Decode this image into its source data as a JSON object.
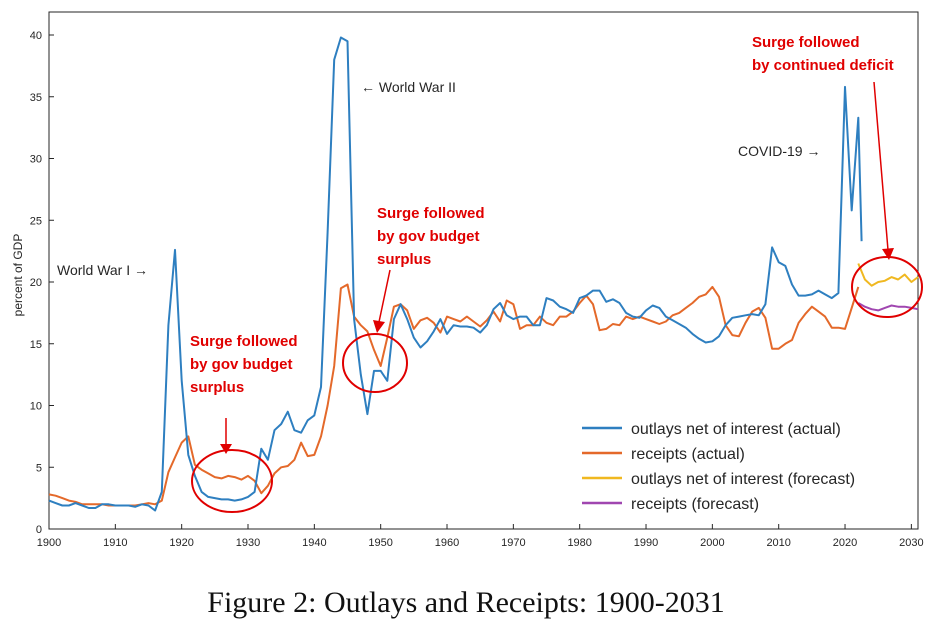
{
  "colors": {
    "outlays_actual": "#2e7fc0",
    "receipts_actual": "#e4692a",
    "outlays_forecast": "#f0b820",
    "receipts_forecast": "#a046b0",
    "annotation": "#e00000"
  },
  "caption": "Figure 2: Outlays and Receipts: 1900-2031",
  "chart_data": {
    "type": "line",
    "ylabel": "percent of GDP",
    "xlim": [
      1900,
      2031
    ],
    "ylim": [
      0,
      41
    ],
    "grid": false,
    "legend_position": "bottom-right",
    "x_ticks": [
      "1900",
      "1910",
      "1920",
      "1930",
      "1940",
      "1950",
      "1960",
      "1970",
      "1980",
      "1990",
      "2000",
      "2010",
      "2020",
      "2030"
    ],
    "y_ticks": [
      "0",
      "5",
      "10",
      "15",
      "20",
      "25",
      "30",
      "35",
      "40"
    ],
    "series": [
      {
        "name": "outlays net of interest (actual)",
        "points": [
          [
            1900,
            2.3
          ],
          [
            1901,
            2.1
          ],
          [
            1902,
            1.9
          ],
          [
            1903,
            1.9
          ],
          [
            1904,
            2.1
          ],
          [
            1905,
            1.9
          ],
          [
            1906,
            1.7
          ],
          [
            1907,
            1.7
          ],
          [
            1908,
            2.0
          ],
          [
            1909,
            2.0
          ],
          [
            1910,
            1.9
          ],
          [
            1911,
            1.9
          ],
          [
            1912,
            1.9
          ],
          [
            1913,
            1.8
          ],
          [
            1914,
            2.0
          ],
          [
            1915,
            1.9
          ],
          [
            1916,
            1.5
          ],
          [
            1917,
            3.0
          ],
          [
            1918,
            16.5
          ],
          [
            1919,
            22.6
          ],
          [
            1920,
            12.0
          ],
          [
            1921,
            6.0
          ],
          [
            1922,
            4.3
          ],
          [
            1923,
            3.0
          ],
          [
            1924,
            2.6
          ],
          [
            1925,
            2.5
          ],
          [
            1926,
            2.4
          ],
          [
            1927,
            2.4
          ],
          [
            1928,
            2.3
          ],
          [
            1929,
            2.4
          ],
          [
            1930,
            2.6
          ],
          [
            1931,
            3.0
          ],
          [
            1932,
            6.5
          ],
          [
            1933,
            5.6
          ],
          [
            1934,
            8.0
          ],
          [
            1935,
            8.5
          ],
          [
            1936,
            9.5
          ],
          [
            1937,
            8.0
          ],
          [
            1938,
            7.8
          ],
          [
            1939,
            8.8
          ],
          [
            1940,
            9.2
          ],
          [
            1941,
            11.5
          ],
          [
            1942,
            24.0
          ],
          [
            1943,
            38.0
          ],
          [
            1944,
            39.8
          ],
          [
            1945,
            39.5
          ],
          [
            1946,
            17.0
          ],
          [
            1947,
            12.5
          ],
          [
            1948,
            9.3
          ],
          [
            1949,
            12.8
          ],
          [
            1950,
            12.8
          ],
          [
            1951,
            12.0
          ],
          [
            1952,
            17.0
          ],
          [
            1953,
            18.2
          ],
          [
            1954,
            17.0
          ],
          [
            1955,
            15.5
          ],
          [
            1956,
            14.7
          ],
          [
            1957,
            15.2
          ],
          [
            1958,
            16.0
          ],
          [
            1959,
            17.0
          ],
          [
            1960,
            15.8
          ],
          [
            1961,
            16.5
          ],
          [
            1962,
            16.4
          ],
          [
            1963,
            16.4
          ],
          [
            1964,
            16.3
          ],
          [
            1965,
            15.9
          ],
          [
            1966,
            16.5
          ],
          [
            1967,
            17.8
          ],
          [
            1968,
            18.3
          ],
          [
            1969,
            17.3
          ],
          [
            1970,
            17.0
          ],
          [
            1971,
            17.2
          ],
          [
            1972,
            17.2
          ],
          [
            1973,
            16.5
          ],
          [
            1974,
            16.5
          ],
          [
            1975,
            18.7
          ],
          [
            1976,
            18.5
          ],
          [
            1977,
            18.0
          ],
          [
            1978,
            17.8
          ],
          [
            1979,
            17.5
          ],
          [
            1980,
            18.7
          ],
          [
            1981,
            18.9
          ],
          [
            1982,
            19.3
          ],
          [
            1983,
            19.3
          ],
          [
            1984,
            18.4
          ],
          [
            1985,
            18.6
          ],
          [
            1986,
            18.3
          ],
          [
            1987,
            17.5
          ],
          [
            1988,
            17.2
          ],
          [
            1989,
            17.1
          ],
          [
            1990,
            17.7
          ],
          [
            1991,
            18.1
          ],
          [
            1992,
            17.9
          ],
          [
            1993,
            17.2
          ],
          [
            1994,
            16.9
          ],
          [
            1995,
            16.6
          ],
          [
            1996,
            16.3
          ],
          [
            1997,
            15.8
          ],
          [
            1998,
            15.4
          ],
          [
            1999,
            15.1
          ],
          [
            2000,
            15.2
          ],
          [
            2001,
            15.6
          ],
          [
            2002,
            16.5
          ],
          [
            2003,
            17.1
          ],
          [
            2004,
            17.2
          ],
          [
            2005,
            17.3
          ],
          [
            2006,
            17.4
          ],
          [
            2007,
            17.3
          ],
          [
            2008,
            18.2
          ],
          [
            2009,
            22.8
          ],
          [
            2010,
            21.6
          ],
          [
            2011,
            21.3
          ],
          [
            2012,
            19.8
          ],
          [
            2013,
            18.9
          ],
          [
            2014,
            18.9
          ],
          [
            2015,
            19.0
          ],
          [
            2016,
            19.3
          ],
          [
            2017,
            19.0
          ],
          [
            2018,
            18.7
          ],
          [
            2019,
            19.1
          ],
          [
            2020,
            35.8
          ],
          [
            2021,
            25.8
          ],
          [
            2022,
            33.3
          ],
          [
            2022.5,
            23.3
          ]
        ]
      },
      {
        "name": "receipts (actual)",
        "points": [
          [
            1900,
            2.8
          ],
          [
            1901,
            2.7
          ],
          [
            1902,
            2.5
          ],
          [
            1903,
            2.3
          ],
          [
            1904,
            2.2
          ],
          [
            1905,
            2.0
          ],
          [
            1906,
            2.0
          ],
          [
            1907,
            2.0
          ],
          [
            1908,
            2.0
          ],
          [
            1909,
            1.9
          ],
          [
            1910,
            1.9
          ],
          [
            1911,
            1.9
          ],
          [
            1912,
            1.9
          ],
          [
            1913,
            1.9
          ],
          [
            1914,
            2.0
          ],
          [
            1915,
            2.1
          ],
          [
            1916,
            2.0
          ],
          [
            1917,
            2.3
          ],
          [
            1918,
            4.6
          ],
          [
            1919,
            5.8
          ],
          [
            1920,
            7.0
          ],
          [
            1921,
            7.5
          ],
          [
            1922,
            5.2
          ],
          [
            1923,
            4.8
          ],
          [
            1924,
            4.5
          ],
          [
            1925,
            4.2
          ],
          [
            1926,
            4.1
          ],
          [
            1927,
            4.3
          ],
          [
            1928,
            4.2
          ],
          [
            1929,
            4.0
          ],
          [
            1930,
            4.3
          ],
          [
            1931,
            3.9
          ],
          [
            1932,
            2.9
          ],
          [
            1933,
            3.5
          ],
          [
            1934,
            4.5
          ],
          [
            1935,
            5.0
          ],
          [
            1936,
            5.1
          ],
          [
            1937,
            5.6
          ],
          [
            1938,
            7.0
          ],
          [
            1939,
            5.9
          ],
          [
            1940,
            6.0
          ],
          [
            1941,
            7.5
          ],
          [
            1942,
            10.0
          ],
          [
            1943,
            13.2
          ],
          [
            1944,
            19.5
          ],
          [
            1945,
            19.8
          ],
          [
            1946,
            17.2
          ],
          [
            1947,
            16.5
          ],
          [
            1948,
            16.0
          ],
          [
            1949,
            14.5
          ],
          [
            1950,
            13.2
          ],
          [
            1951,
            15.5
          ],
          [
            1952,
            18.0
          ],
          [
            1953,
            18.2
          ],
          [
            1954,
            17.7
          ],
          [
            1955,
            16.2
          ],
          [
            1956,
            16.9
          ],
          [
            1957,
            17.1
          ],
          [
            1958,
            16.7
          ],
          [
            1959,
            15.9
          ],
          [
            1960,
            17.2
          ],
          [
            1961,
            17.0
          ],
          [
            1962,
            16.8
          ],
          [
            1963,
            17.2
          ],
          [
            1964,
            16.8
          ],
          [
            1965,
            16.4
          ],
          [
            1966,
            16.9
          ],
          [
            1967,
            17.6
          ],
          [
            1968,
            16.8
          ],
          [
            1969,
            18.5
          ],
          [
            1970,
            18.2
          ],
          [
            1971,
            16.2
          ],
          [
            1972,
            16.5
          ],
          [
            1973,
            16.5
          ],
          [
            1974,
            17.2
          ],
          [
            1975,
            16.7
          ],
          [
            1976,
            16.5
          ],
          [
            1977,
            17.2
          ],
          [
            1978,
            17.2
          ],
          [
            1979,
            17.6
          ],
          [
            1980,
            18.3
          ],
          [
            1981,
            18.9
          ],
          [
            1982,
            18.2
          ],
          [
            1983,
            16.1
          ],
          [
            1984,
            16.2
          ],
          [
            1985,
            16.6
          ],
          [
            1986,
            16.5
          ],
          [
            1987,
            17.2
          ],
          [
            1988,
            17.0
          ],
          [
            1989,
            17.2
          ],
          [
            1990,
            17.0
          ],
          [
            1991,
            16.8
          ],
          [
            1992,
            16.6
          ],
          [
            1993,
            16.8
          ],
          [
            1994,
            17.3
          ],
          [
            1995,
            17.5
          ],
          [
            1996,
            17.9
          ],
          [
            1997,
            18.3
          ],
          [
            1998,
            18.8
          ],
          [
            1999,
            19.0
          ],
          [
            2000,
            19.6
          ],
          [
            2001,
            18.8
          ],
          [
            2002,
            16.5
          ],
          [
            2003,
            15.7
          ],
          [
            2004,
            15.6
          ],
          [
            2005,
            16.7
          ],
          [
            2006,
            17.6
          ],
          [
            2007,
            17.9
          ],
          [
            2008,
            17.1
          ],
          [
            2009,
            14.6
          ],
          [
            2010,
            14.6
          ],
          [
            2011,
            15.0
          ],
          [
            2012,
            15.3
          ],
          [
            2013,
            16.7
          ],
          [
            2014,
            17.4
          ],
          [
            2015,
            18.0
          ],
          [
            2016,
            17.6
          ],
          [
            2017,
            17.2
          ],
          [
            2018,
            16.3
          ],
          [
            2019,
            16.3
          ],
          [
            2020,
            16.2
          ],
          [
            2021,
            17.9
          ],
          [
            2022,
            19.6
          ]
        ]
      },
      {
        "name": "outlays net of interest (forecast)",
        "points": [
          [
            2022,
            21.5
          ],
          [
            2023,
            20.2
          ],
          [
            2024,
            19.7
          ],
          [
            2025,
            20.0
          ],
          [
            2026,
            20.1
          ],
          [
            2027,
            20.4
          ],
          [
            2028,
            20.2
          ],
          [
            2029,
            20.6
          ],
          [
            2030,
            20.0
          ],
          [
            2031,
            20.4
          ]
        ]
      },
      {
        "name": "receipts (forecast)",
        "points": [
          [
            2022,
            18.3
          ],
          [
            2023,
            18.0
          ],
          [
            2024,
            17.8
          ],
          [
            2025,
            17.7
          ],
          [
            2026,
            17.9
          ],
          [
            2027,
            18.1
          ],
          [
            2028,
            18.0
          ],
          [
            2029,
            18.0
          ],
          [
            2030,
            17.9
          ],
          [
            2031,
            17.8
          ]
        ]
      }
    ],
    "annotations": {
      "wars": [
        "World War I →",
        "← World War II",
        "COVID-19 →"
      ],
      "surge_1920s": [
        "Surge followed",
        "by gov budget",
        "surplus"
      ],
      "surge_1940s": [
        "Surge followed",
        "by gov budget",
        "surplus"
      ],
      "surge_2020s": [
        "Surge followed",
        "by continued deficit"
      ]
    }
  }
}
